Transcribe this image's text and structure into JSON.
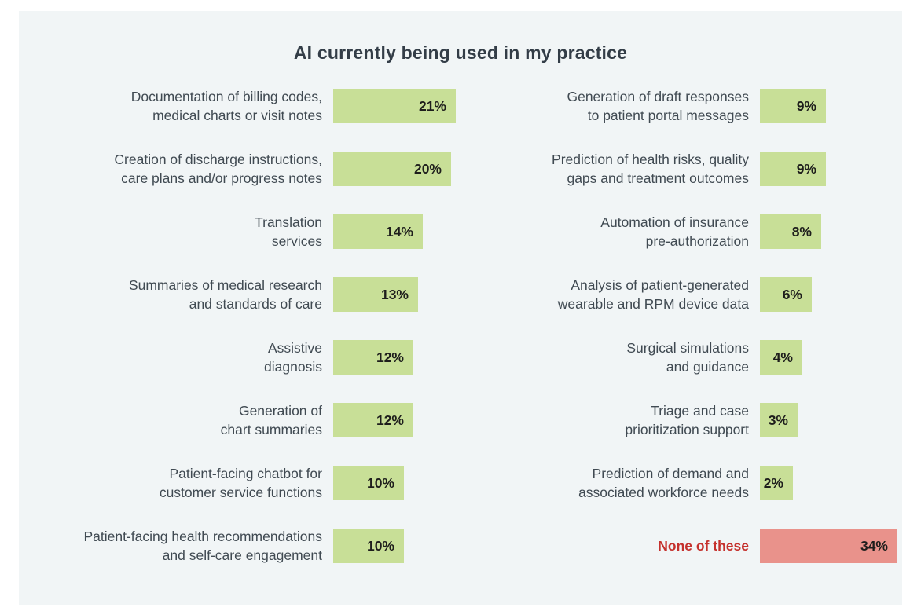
{
  "title": "AI currently being used in my practice",
  "colors": {
    "panel_background": "#f1f5f6",
    "bar_green": "#c8df97",
    "bar_red": "#e9928b",
    "label_text": "#404a52",
    "label_red": "#c5312d",
    "value_text": "#1e1e1c",
    "title_text": "#333d47"
  },
  "chart_data": {
    "type": "bar",
    "orientation": "horizontal",
    "title": "AI currently being used in my practice",
    "unit": "%",
    "value_labels_inside_bars": true,
    "legend": "none",
    "grid": false,
    "columns": [
      {
        "name": "left",
        "items": [
          {
            "label": "Documentation of billing codes,\nmedical charts or visit notes",
            "value": 21,
            "display": "21%",
            "variant": "green"
          },
          {
            "label": "Creation of discharge instructions,\ncare plans and/or progress notes",
            "value": 20,
            "display": "20%",
            "variant": "green"
          },
          {
            "label": "Translation\nservices",
            "value": 14,
            "display": "14%",
            "variant": "green"
          },
          {
            "label": "Summaries of medical research\nand standards of care",
            "value": 13,
            "display": "13%",
            "variant": "green"
          },
          {
            "label": "Assistive\ndiagnosis",
            "value": 12,
            "display": "12%",
            "variant": "green"
          },
          {
            "label": "Generation of\nchart summaries",
            "value": 12,
            "display": "12%",
            "variant": "green"
          },
          {
            "label": "Patient-facing chatbot for\ncustomer service functions",
            "value": 10,
            "display": "10%",
            "variant": "green"
          },
          {
            "label": "Patient-facing health recommendations\nand self-care engagement",
            "value": 10,
            "display": "10%",
            "variant": "green"
          }
        ]
      },
      {
        "name": "right",
        "items": [
          {
            "label": "Generation of draft responses\nto patient portal messages",
            "value": 9,
            "display": "9%",
            "variant": "green"
          },
          {
            "label": "Prediction of health risks, quality\ngaps and treatment outcomes",
            "value": 9,
            "display": "9%",
            "variant": "green"
          },
          {
            "label": "Automation of insurance\npre-authorization",
            "value": 8,
            "display": "8%",
            "variant": "green"
          },
          {
            "label": "Analysis of patient-generated\nwearable and RPM device data",
            "value": 6,
            "display": "6%",
            "variant": "green"
          },
          {
            "label": "Surgical simulations\nand guidance",
            "value": 4,
            "display": "4%",
            "variant": "green"
          },
          {
            "label": "Triage and case\nprioritization support",
            "value": 3,
            "display": "3%",
            "variant": "green"
          },
          {
            "label": "Prediction of demand and\nassociated workforce needs",
            "value": 2,
            "display": "2%",
            "variant": "green"
          },
          {
            "label": "None of these",
            "value": 34,
            "display": "34%",
            "variant": "red"
          }
        ]
      }
    ]
  }
}
